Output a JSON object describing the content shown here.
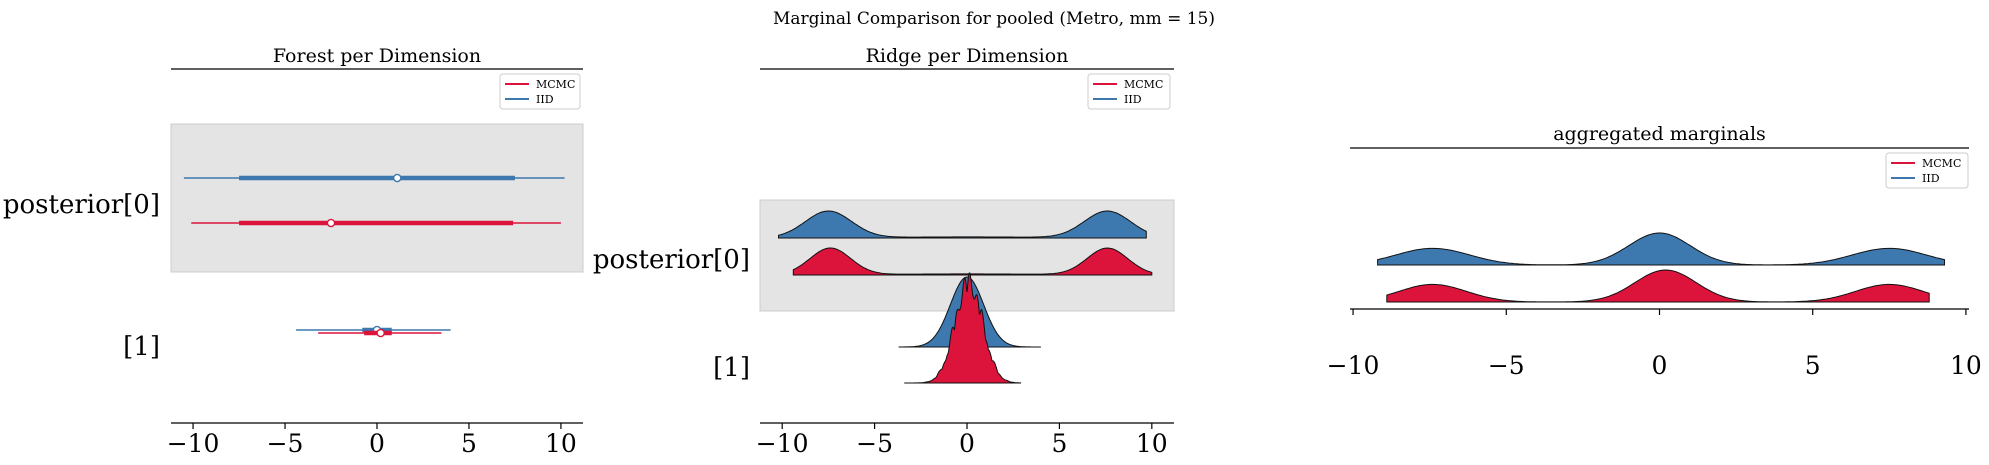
{
  "figure": {
    "suptitle": "Marginal Comparison for pooled (Metro, mm = 15)"
  },
  "colors": {
    "mcmc": "#dc143c",
    "iid": "#3d78ae",
    "band": "#e4e4e4"
  },
  "chart_data": [
    {
      "type": "forest",
      "title": "Forest per Dimension",
      "xlim": [
        -11.2,
        11.2
      ],
      "xticks": [
        -10,
        -5,
        0,
        5,
        10
      ],
      "xtick_labels": [
        "−10",
        "−5",
        "0",
        "5",
        "10"
      ],
      "legend": {
        "position": "top-right",
        "entries": [
          "MCMC",
          "IID"
        ]
      },
      "yticklabels": [
        "posterior[0]",
        "[1]"
      ],
      "series": [
        {
          "name": "IID",
          "dims": [
            {
              "thin": [
                -10.5,
                10.2
              ],
              "thick": [
                -7.5,
                7.5
              ],
              "center": 1.1
            },
            {
              "thin": [
                -4.4,
                4.0
              ],
              "thick": [
                -0.8,
                0.8
              ],
              "center": 0.0
            }
          ]
        },
        {
          "name": "MCMC",
          "dims": [
            {
              "thin": [
                -10.1,
                10.0
              ],
              "thick": [
                -7.5,
                7.4
              ],
              "center": -2.5
            },
            {
              "thin": [
                -3.2,
                3.5
              ],
              "thick": [
                -0.7,
                0.8
              ],
              "center": 0.2
            }
          ]
        }
      ]
    },
    {
      "type": "ridge",
      "title": "Ridge per Dimension",
      "xlim": [
        -11.2,
        11.2
      ],
      "xticks": [
        -10,
        -5,
        0,
        5,
        10
      ],
      "xtick_labels": [
        "−10",
        "−5",
        "0",
        "5",
        "10"
      ],
      "legend": {
        "position": "top-right",
        "entries": [
          "MCMC",
          "IID"
        ]
      },
      "yticklabels": [
        "posterior[0]",
        "[1]"
      ],
      "series": [
        {
          "name": "IID",
          "dims": [
            {
              "range": [
                -10.2,
                9.7
              ],
              "peaks": [
                [
                  -7.5,
                  1.0,
                  1.25
                ],
                [
                  7.6,
                  1.0,
                  1.25
                ],
                [
                  0.0,
                  0.04,
                  5.0
                ]
              ]
            },
            {
              "range": [
                -3.7,
                4.0
              ],
              "peaks": [
                [
                  0.0,
                  1.0,
                  0.9
                ]
              ]
            }
          ]
        },
        {
          "name": "MCMC",
          "dims": [
            {
              "range": [
                -9.4,
                10.0
              ],
              "peaks": [
                [
                  -7.4,
                  1.0,
                  1.1
                ],
                [
                  7.6,
                  1.0,
                  1.1
                ],
                [
                  0.0,
                  0.04,
                  5.0
                ]
              ]
            },
            {
              "range": [
                -3.4,
                2.9
              ],
              "peaks": [
                [
                  0.1,
                  1.0,
                  0.75
                ]
              ],
              "jagged": true
            }
          ]
        }
      ]
    },
    {
      "type": "ridge",
      "title": "aggregated marginals",
      "xlim": [
        -10.1,
        10.1
      ],
      "xticks": [
        -10,
        -5,
        0,
        5,
        10
      ],
      "xtick_labels": [
        "−10",
        "−5",
        "0",
        "5",
        "10"
      ],
      "legend": {
        "position": "top-right",
        "entries": [
          "MCMC",
          "IID"
        ]
      },
      "series": [
        {
          "name": "IID",
          "range": [
            -9.2,
            9.3
          ],
          "peaks": [
            [
              -7.4,
              0.52,
              1.2
            ],
            [
              0.0,
              1.0,
              1.0
            ],
            [
              7.5,
              0.52,
              1.2
            ]
          ]
        },
        {
          "name": "MCMC",
          "range": [
            -8.9,
            8.8
          ],
          "peaks": [
            [
              -7.4,
              0.55,
              1.1
            ],
            [
              0.2,
              1.0,
              1.0
            ],
            [
              7.5,
              0.55,
              1.1
            ]
          ]
        }
      ]
    }
  ]
}
